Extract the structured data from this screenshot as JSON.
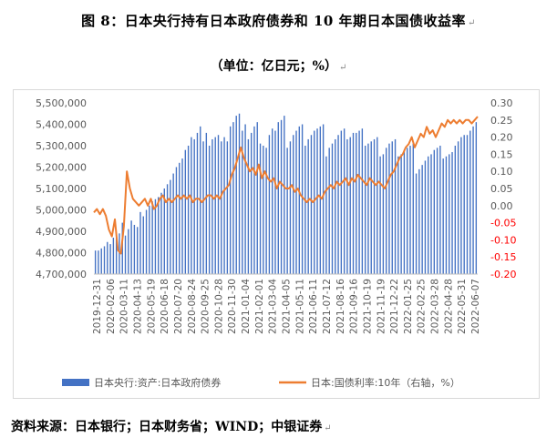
{
  "figure_title": "图 8：日本央行持有日本政府债券和 10 年期日本国债收益率",
  "figure_subtitle": "（单位：亿日元；%）",
  "return_mark": "↵",
  "source_text": "资料来源：日本银行；日本财务省；WIND；中银证券",
  "colors": {
    "bar": "#4472c4",
    "line": "#ed7d31",
    "neg": "#ff0000",
    "axis": "#595959",
    "frame": "#d9d9d9"
  },
  "chart_data": {
    "type": "bar+line",
    "x_labels": [
      "2019-12-31",
      "2020-02-06",
      "2020-03-11",
      "2020-04-13",
      "2020-05-19",
      "2020-06-18",
      "2020-07-20",
      "2020-08-24",
      "2020-09-25",
      "2020-10-28",
      "2020-11-30",
      "2021-01-04",
      "2021-02-01",
      "2021-03-04",
      "2021-04-05",
      "2021-05-11",
      "2021-06-11",
      "2021-07-12",
      "2021-08-16",
      "2021-09-16",
      "2021-10-19",
      "2021-11-19",
      "2021-12-22",
      "2022-01-25",
      "2022-02-25",
      "2022-03-28",
      "2022-04-28",
      "2022-05-31",
      "2022-06-07"
    ],
    "left_axis": {
      "min": 4700000,
      "max": 5500000,
      "ticks": [
        "4,700,000",
        "4,800,000",
        "4,900,000",
        "5,000,000",
        "5,100,000",
        "5,200,000",
        "5,300,000",
        "5,400,000",
        "5,500,000"
      ]
    },
    "right_axis": {
      "min": -0.2,
      "max": 0.3,
      "ticks": [
        "-0.20",
        "-0.15",
        "-0.10",
        "-0.05",
        "0.00",
        "0.05",
        "0.10",
        "0.15",
        "0.20",
        "0.25",
        "0.30"
      ]
    },
    "series": [
      {
        "name": "日本央行:资产:日本政府债券",
        "axis": "left",
        "type": "bar",
        "values": [
          4810000,
          4810000,
          4820000,
          4830000,
          4850000,
          4840000,
          4870000,
          4890000,
          4890000,
          4940000,
          4880000,
          4910000,
          4950000,
          4930000,
          4920000,
          4990000,
          4970000,
          5000000,
          5020000,
          5040000,
          5050000,
          5060000,
          5080000,
          5100000,
          5120000,
          5140000,
          5170000,
          5200000,
          5220000,
          5240000,
          5280000,
          5300000,
          5340000,
          5330000,
          5360000,
          5390000,
          5320000,
          5360000,
          5300000,
          5330000,
          5340000,
          5350000,
          5320000,
          5340000,
          5320000,
          5390000,
          5410000,
          5440000,
          5450000,
          5370000,
          5400000,
          5330000,
          5360000,
          5390000,
          5410000,
          5310000,
          5300000,
          5290000,
          5350000,
          5380000,
          5370000,
          5410000,
          5420000,
          5440000,
          5290000,
          5320000,
          5350000,
          5370000,
          5390000,
          5400000,
          5300000,
          5330000,
          5350000,
          5370000,
          5380000,
          5390000,
          5400000,
          5250000,
          5290000,
          5310000,
          5330000,
          5350000,
          5370000,
          5380000,
          5330000,
          5340000,
          5360000,
          5360000,
          5370000,
          5380000,
          5300000,
          5310000,
          5320000,
          5330000,
          5340000,
          5250000,
          5260000,
          5290000,
          5310000,
          5320000,
          5330000,
          5250000,
          5260000,
          5280000,
          5290000,
          5300000,
          5310000,
          5170000,
          5190000,
          5210000,
          5230000,
          5250000,
          5260000,
          5280000,
          5290000,
          5300000,
          5240000,
          5250000,
          5260000,
          5270000,
          5300000,
          5320000,
          5340000,
          5350000,
          5350000,
          5370000,
          5390000,
          5410000
        ]
      },
      {
        "name": "日本:国债利率:10年（右轴，%）",
        "axis": "right",
        "type": "line",
        "values": [
          -0.02,
          -0.01,
          -0.025,
          -0.01,
          -0.03,
          -0.07,
          -0.09,
          -0.04,
          -0.13,
          -0.14,
          -0.06,
          0.1,
          0.05,
          0.02,
          0.01,
          0.0,
          0.01,
          0.02,
          0.0,
          0.02,
          -0.01,
          0.0,
          0.02,
          0.03,
          0.01,
          0.02,
          0.01,
          0.02,
          0.03,
          0.02,
          0.03,
          0.02,
          0.03,
          0.01,
          0.02,
          0.02,
          0.01,
          0.02,
          0.03,
          0.03,
          0.02,
          0.03,
          0.02,
          0.04,
          0.05,
          0.06,
          0.09,
          0.11,
          0.14,
          0.17,
          0.14,
          0.12,
          0.1,
          0.11,
          0.09,
          0.12,
          0.08,
          0.1,
          0.08,
          0.07,
          0.08,
          0.05,
          0.07,
          0.06,
          0.05,
          0.05,
          0.06,
          0.04,
          0.05,
          0.03,
          0.02,
          0.01,
          0.02,
          0.01,
          0.02,
          0.03,
          0.02,
          0.04,
          0.05,
          0.06,
          0.05,
          0.07,
          0.06,
          0.07,
          0.08,
          0.06,
          0.08,
          0.07,
          0.09,
          0.08,
          0.07,
          0.06,
          0.08,
          0.07,
          0.06,
          0.07,
          0.06,
          0.05,
          0.07,
          0.09,
          0.1,
          0.12,
          0.14,
          0.15,
          0.17,
          0.18,
          0.2,
          0.17,
          0.19,
          0.21,
          0.2,
          0.23,
          0.21,
          0.22,
          0.2,
          0.22,
          0.24,
          0.23,
          0.25,
          0.24,
          0.25,
          0.24,
          0.25,
          0.24,
          0.25,
          0.25,
          0.24,
          0.25,
          0.26
        ]
      }
    ],
    "legend_position": "bottom",
    "grid": false
  }
}
